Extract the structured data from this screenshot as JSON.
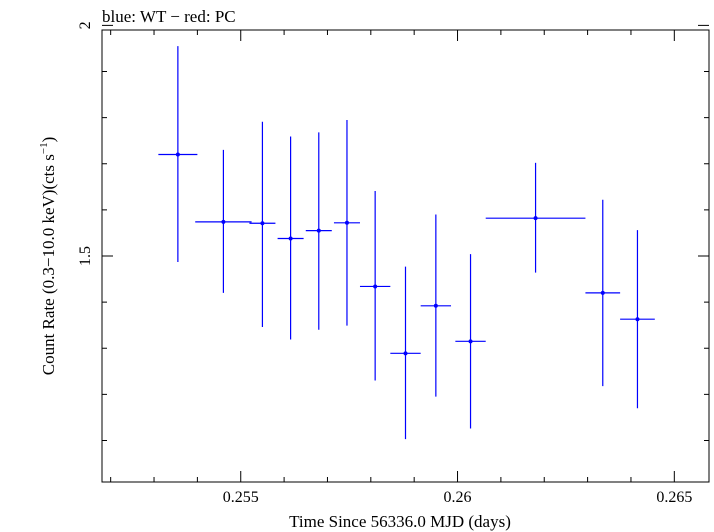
{
  "chart_data": {
    "type": "scatter",
    "title": "blue: WT − red: PC",
    "xlabel": "Time Since 56336.0 MJD (days)",
    "ylabel_main": "Count Rate (0.3−10.0 keV)(cts s",
    "ylabel_sup": "−1",
    "ylabel_end": ")",
    "xlim": [
      0.2518,
      0.2658
    ],
    "ylim": [
      1.01,
      1.99
    ],
    "x_ticks": [
      0.255,
      0.26,
      0.265
    ],
    "x_tick_labels": [
      "0.255",
      "0.26",
      "0.265"
    ],
    "y_ticks": [
      1.5,
      2.0
    ],
    "y_tick_labels": [
      "1.5",
      "2"
    ],
    "series": [
      {
        "color": "#0000ff",
        "points": [
          {
            "x": 0.25355,
            "xerr": 0.00045,
            "y": 1.72,
            "yerr_lo": 0.233,
            "yerr_hi": 0.235
          },
          {
            "x": 0.2546,
            "xerr": 0.00065,
            "y": 1.574,
            "yerr_lo": 0.154,
            "yerr_hi": 0.156
          },
          {
            "x": 0.2555,
            "xerr": 0.0003,
            "y": 1.571,
            "yerr_lo": 0.225,
            "yerr_hi": 0.22
          },
          {
            "x": 0.25615,
            "xerr": 0.0003,
            "y": 1.538,
            "yerr_lo": 0.219,
            "yerr_hi": 0.221
          },
          {
            "x": 0.2568,
            "xerr": 0.0003,
            "y": 1.555,
            "yerr_lo": 0.215,
            "yerr_hi": 0.213
          },
          {
            "x": 0.25745,
            "xerr": 0.0003,
            "y": 1.572,
            "yerr_lo": 0.223,
            "yerr_hi": 0.223
          },
          {
            "x": 0.2581,
            "xerr": 0.00035,
            "y": 1.434,
            "yerr_lo": 0.204,
            "yerr_hi": 0.207
          },
          {
            "x": 0.2588,
            "xerr": 0.00035,
            "y": 1.289,
            "yerr_lo": 0.186,
            "yerr_hi": 0.188
          },
          {
            "x": 0.2595,
            "xerr": 0.00035,
            "y": 1.392,
            "yerr_lo": 0.197,
            "yerr_hi": 0.198
          },
          {
            "x": 0.2603,
            "xerr": 0.00035,
            "y": 1.315,
            "yerr_lo": 0.189,
            "yerr_hi": 0.189
          },
          {
            "x": 0.2618,
            "xerr": 0.00115,
            "y": 1.582,
            "yerr_lo": 0.118,
            "yerr_hi": 0.12
          },
          {
            "x": 0.26335,
            "xerr": 0.0004,
            "y": 1.42,
            "yerr_lo": 0.202,
            "yerr_hi": 0.202
          },
          {
            "x": 0.26415,
            "xerr": 0.0004,
            "y": 1.363,
            "yerr_lo": 0.193,
            "yerr_hi": 0.193
          }
        ]
      }
    ],
    "grid": false,
    "legend": "none"
  }
}
